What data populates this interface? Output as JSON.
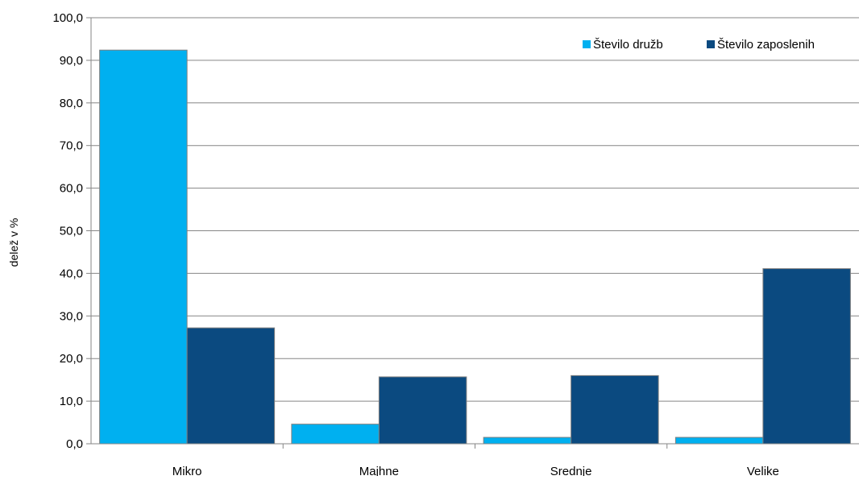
{
  "chart_data": {
    "type": "bar",
    "title": "",
    "xlabel": "",
    "ylabel": "delež v %",
    "ylim": [
      0,
      100
    ],
    "yticks": [
      "0,0",
      "10,0",
      "20,0",
      "30,0",
      "40,0",
      "50,0",
      "60,0",
      "70,0",
      "80,0",
      "90,0",
      "100,0"
    ],
    "grid": true,
    "legend_position": "top-right",
    "categories": [
      "Mikro",
      "Majhne",
      "Srednje",
      "Velike"
    ],
    "series": [
      {
        "name": "Število družb",
        "color": "#00b0f0",
        "values": [
          92.4,
          4.6,
          1.5,
          1.5
        ]
      },
      {
        "name": "Število zaposlenih",
        "color": "#0b4a80",
        "values": [
          27.2,
          15.7,
          16.0,
          41.1
        ]
      }
    ]
  }
}
